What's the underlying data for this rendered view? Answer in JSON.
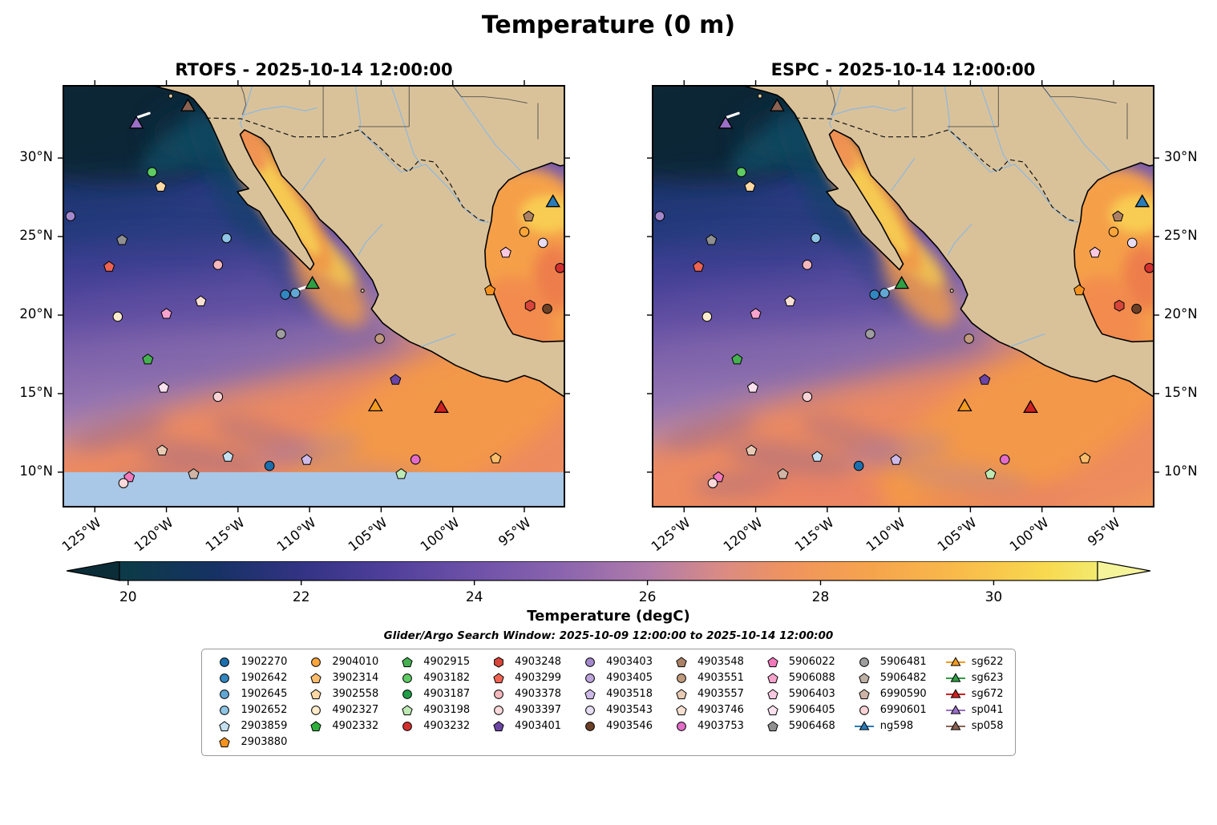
{
  "title": "Temperature (0 m)",
  "panels": [
    {
      "id": "rtofs",
      "title": "RTOFS - 2025-10-14 12:00:00",
      "south_mask": true
    },
    {
      "id": "espc",
      "title": "ESPC - 2025-10-14 12:00:00",
      "south_mask": false
    }
  ],
  "axes": {
    "xlim": [
      -127.2,
      -92.2
    ],
    "ylim": [
      7.8,
      34.6
    ],
    "lon_ticks": [
      {
        "value": -125,
        "label": "125°W"
      },
      {
        "value": -120,
        "label": "120°W"
      },
      {
        "value": -115,
        "label": "115°W"
      },
      {
        "value": -110,
        "label": "110°W"
      },
      {
        "value": -105,
        "label": "105°W"
      },
      {
        "value": -100,
        "label": "100°W"
      },
      {
        "value": -95,
        "label": "95°W"
      }
    ],
    "lat_ticks": [
      {
        "value": 30,
        "label": "30°N"
      },
      {
        "value": 25,
        "label": "25°N"
      },
      {
        "value": 20,
        "label": "20°N"
      },
      {
        "value": 15,
        "label": "15°N"
      },
      {
        "value": 10,
        "label": "10°N"
      }
    ]
  },
  "colorbar": {
    "label": "Temperature (degC)",
    "min": 19.9,
    "max": 31.2,
    "ticks": [
      20,
      22,
      24,
      26,
      28,
      30
    ],
    "under_color": "#0a2d38",
    "over_color": "#f6f49b",
    "stops": [
      [
        20,
        "#0d3a48"
      ],
      [
        21,
        "#163264"
      ],
      [
        22,
        "#333384"
      ],
      [
        23,
        "#4f3f9b"
      ],
      [
        24,
        "#6e51a8"
      ],
      [
        25,
        "#8a64ae"
      ],
      [
        26,
        "#b07baa"
      ],
      [
        26.8,
        "#d88a86"
      ],
      [
        27.6,
        "#ef935f"
      ],
      [
        28.6,
        "#f6a44c"
      ],
      [
        29.6,
        "#f9bb4a"
      ],
      [
        30.6,
        "#f8d94f"
      ],
      [
        31.2,
        "#f3ea6e"
      ]
    ]
  },
  "search_window": "Glider/Argo Search Window: 2025-10-09 12:00:00 to 2025-10-14 12:00:00",
  "map_colors": {
    "land": "#d9c29a",
    "coast": "#000000",
    "river": "#8fb8dc",
    "masked_ocean": "#a9c7e6"
  },
  "legend": {
    "columns": [
      [
        {
          "label": "1902270",
          "marker": "circle",
          "color": "#1b6fae"
        },
        {
          "label": "1902642",
          "marker": "circle",
          "color": "#3387c0"
        },
        {
          "label": "1902645",
          "marker": "circle",
          "color": "#62a7d4"
        },
        {
          "label": "1902652",
          "marker": "circle",
          "color": "#8ec4e4"
        },
        {
          "label": "2903859",
          "marker": "pentagon",
          "color": "#c3dff0"
        },
        {
          "label": "2903880",
          "marker": "pentagon",
          "color": "#f5921e"
        }
      ],
      [
        {
          "label": "2904010",
          "marker": "circle",
          "color": "#fca53a"
        },
        {
          "label": "3902314",
          "marker": "pentagon",
          "color": "#fbbd6b"
        },
        {
          "label": "3902558",
          "marker": "pentagon",
          "color": "#fdd9a4"
        },
        {
          "label": "4902327",
          "marker": "circle",
          "color": "#fdeccb"
        },
        {
          "label": "4902332",
          "marker": "pentagon",
          "color": "#2fae3b"
        }
      ],
      [
        {
          "label": "4902915",
          "marker": "pentagon",
          "color": "#45b050"
        },
        {
          "label": "4903182",
          "marker": "circle",
          "color": "#5ecb63"
        },
        {
          "label": "4903187",
          "marker": "circle",
          "color": "#1e9e46"
        },
        {
          "label": "4903198",
          "marker": "pentagon",
          "color": "#bfe9b4"
        },
        {
          "label": "4903232",
          "marker": "circle",
          "color": "#d32f2f"
        }
      ],
      [
        {
          "label": "4903248",
          "marker": "hexagon",
          "color": "#d8453a"
        },
        {
          "label": "4903299",
          "marker": "pentagon",
          "color": "#ee6352"
        },
        {
          "label": "4903378",
          "marker": "circle",
          "color": "#f5b8bd"
        },
        {
          "label": "4903397",
          "marker": "circle",
          "color": "#fbd9da"
        },
        {
          "label": "4903401",
          "marker": "pentagon",
          "color": "#6a45a4"
        }
      ],
      [
        {
          "label": "4903403",
          "marker": "circle",
          "color": "#a488cc"
        },
        {
          "label": "4903405",
          "marker": "circle",
          "color": "#bda4dc"
        },
        {
          "label": "4903518",
          "marker": "pentagon",
          "color": "#cdbae8"
        },
        {
          "label": "4903543",
          "marker": "circle",
          "color": "#e6dcf4"
        },
        {
          "label": "4903546",
          "marker": "circle",
          "color": "#6b4026"
        }
      ],
      [
        {
          "label": "4903548",
          "marker": "pentagon",
          "color": "#ab8165"
        },
        {
          "label": "4903551",
          "marker": "circle",
          "color": "#c09a7c"
        },
        {
          "label": "4903557",
          "marker": "pentagon",
          "color": "#e8cbb4"
        },
        {
          "label": "4903746",
          "marker": "pentagon",
          "color": "#f7e0d2"
        },
        {
          "label": "4903753",
          "marker": "circle",
          "color": "#e26cc8"
        }
      ],
      [
        {
          "label": "5906022",
          "marker": "pentagon",
          "color": "#f478bc"
        },
        {
          "label": "5906088",
          "marker": "pentagon",
          "color": "#f7a3cd"
        },
        {
          "label": "5906403",
          "marker": "pentagon",
          "color": "#fac8e0"
        },
        {
          "label": "5906405",
          "marker": "pentagon",
          "color": "#fbe0ee"
        },
        {
          "label": "5906468",
          "marker": "pentagon",
          "color": "#8f8f8f"
        }
      ],
      [
        {
          "label": "5906481",
          "marker": "circle",
          "color": "#9e9e9e"
        },
        {
          "label": "5906482",
          "marker": "pentagon",
          "color": "#bdb0a4"
        },
        {
          "label": "6990590",
          "marker": "pentagon",
          "color": "#cfb4a6"
        },
        {
          "label": "6990601",
          "marker": "circle",
          "color": "#f8d3d6"
        },
        {
          "label": "ng598",
          "marker": "glider",
          "color": "#2a7cb8"
        }
      ],
      [
        {
          "label": "sg622",
          "marker": "glider",
          "color": "#f59b20"
        },
        {
          "label": "sg623",
          "marker": "glider",
          "color": "#2f9e44"
        },
        {
          "label": "sg672",
          "marker": "glider",
          "color": "#cf2020"
        },
        {
          "label": "sp041",
          "marker": "glider",
          "color": "#9b6fc8"
        },
        {
          "label": "sp058",
          "marker": "glider",
          "color": "#8b6252"
        }
      ]
    ]
  },
  "markers": [
    {
      "id": "sp041",
      "lon": -122.1,
      "lat": 32.2
    },
    {
      "id": "sp058",
      "lon": -118.5,
      "lat": 33.3
    },
    {
      "id": "4903182",
      "lon": -121.0,
      "lat": 29.1
    },
    {
      "id": "3902558",
      "lon": -120.4,
      "lat": 28.2
    },
    {
      "id": "4903403",
      "lon": -126.7,
      "lat": 26.3
    },
    {
      "id": "5906468",
      "lon": -123.1,
      "lat": 24.8
    },
    {
      "id": "1902652",
      "lon": -115.8,
      "lat": 24.9
    },
    {
      "id": "4903299",
      "lon": -124.0,
      "lat": 23.1
    },
    {
      "id": "4903378",
      "lon": -116.4,
      "lat": 23.2
    },
    {
      "id": "4903746",
      "lon": -117.6,
      "lat": 20.9
    },
    {
      "id": "1902642",
      "lon": -111.7,
      "lat": 21.3
    },
    {
      "id": "1902645",
      "lon": -111.0,
      "lat": 21.4
    },
    {
      "id": "sg623",
      "lon": -109.8,
      "lat": 22.0
    },
    {
      "id": "4902327",
      "lon": -123.4,
      "lat": 19.9
    },
    {
      "id": "5906088",
      "lon": -120.0,
      "lat": 20.1
    },
    {
      "id": "5906481",
      "lon": -112.0,
      "lat": 18.8
    },
    {
      "id": "4903548",
      "lon": -94.7,
      "lat": 26.3
    },
    {
      "id": "2904010",
      "lon": -95.0,
      "lat": 25.3
    },
    {
      "id": "5906403",
      "lon": -96.3,
      "lat": 24.0
    },
    {
      "id": "4903543",
      "lon": -93.7,
      "lat": 24.6
    },
    {
      "id": "ng598",
      "lon": -93.0,
      "lat": 27.2
    },
    {
      "id": "4903232",
      "lon": -92.5,
      "lat": 23.0
    },
    {
      "id": "2903880",
      "lon": -97.4,
      "lat": 21.6
    },
    {
      "id": "4903248",
      "lon": -94.6,
      "lat": 20.6
    },
    {
      "id": "4903546",
      "lon": -93.4,
      "lat": 20.4
    },
    {
      "id": "4902915",
      "lon": -121.3,
      "lat": 17.2
    },
    {
      "id": "5906405",
      "lon": -120.2,
      "lat": 15.4
    },
    {
      "id": "6990601",
      "lon": -116.4,
      "lat": 14.8
    },
    {
      "id": "4903551",
      "lon": -105.1,
      "lat": 18.5
    },
    {
      "id": "4903401",
      "lon": -104.0,
      "lat": 15.9
    },
    {
      "id": "sg622",
      "lon": -105.4,
      "lat": 14.2
    },
    {
      "id": "sg672",
      "lon": -100.8,
      "lat": 14.1
    },
    {
      "id": "4903557",
      "lon": -120.3,
      "lat": 11.4
    },
    {
      "id": "2903859",
      "lon": -115.7,
      "lat": 11.0
    },
    {
      "id": "1902270",
      "lon": -112.8,
      "lat": 10.4
    },
    {
      "id": "4903518",
      "lon": -110.2,
      "lat": 10.8
    },
    {
      "id": "4903753",
      "lon": -102.6,
      "lat": 10.8
    },
    {
      "id": "3902314",
      "lon": -97.0,
      "lat": 10.9
    },
    {
      "id": "5906022",
      "lon": -122.6,
      "lat": 9.7
    },
    {
      "id": "4903397",
      "lon": -123.0,
      "lat": 9.3
    },
    {
      "id": "6990590",
      "lon": -118.1,
      "lat": 9.9
    },
    {
      "id": "4903198",
      "lon": -103.6,
      "lat": 9.9
    }
  ],
  "tracks": [
    {
      "x": [
        -122.0,
        -121.2
      ],
      "y": [
        32.6,
        32.85
      ]
    },
    {
      "x": [
        -110.9,
        -110.2
      ],
      "y": [
        21.6,
        21.8
      ]
    }
  ],
  "chart_data": {
    "type": "heatmap",
    "title": "Temperature (0 m)",
    "subplots": [
      "RTOFS - 2025-10-14 12:00:00",
      "ESPC - 2025-10-14 12:00:00"
    ],
    "x": {
      "label": "longitude",
      "ticks": [
        -125,
        -120,
        -115,
        -110,
        -105,
        -100,
        -95
      ],
      "tick_labels": [
        "125°W",
        "120°W",
        "115°W",
        "110°W",
        "105°W",
        "100°W",
        "95°W"
      ],
      "range": [
        -127.2,
        -92.2
      ]
    },
    "y": {
      "label": "latitude",
      "ticks": [
        30,
        25,
        20,
        15,
        10
      ],
      "tick_labels": [
        "30°N",
        "25°N",
        "20°N",
        "15°N",
        "10°N"
      ],
      "range": [
        7.8,
        34.6
      ]
    },
    "colorbar": {
      "label": "Temperature (degC)",
      "ticks": [
        20,
        22,
        24,
        26,
        28,
        30
      ],
      "displayed_range": [
        19.5,
        31.5
      ]
    },
    "field_readings_degC": [
      {
        "location": "northwest corner offshore California (~125°W, 32°N)",
        "value": 19.5
      },
      {
        "location": "west of central Baja California (~120°W, 26°N)",
        "value": 22.5
      },
      {
        "location": "offshore purple band (~118°W, 20°N)",
        "value": 25
      },
      {
        "location": "northern Gulf of California",
        "value": 29
      },
      {
        "location": "central Gulf of California",
        "value": 30.5
      },
      {
        "location": "tropical Pacific south of 15°N",
        "value": 28.5
      },
      {
        "location": "western Gulf of Mexico",
        "value": 29
      },
      {
        "location": "RTOFS panel south of 10°N",
        "value": "no data (masked light blue)"
      }
    ],
    "platforms": {
      "argo_float_ids": [
        "1902270",
        "1902642",
        "1902645",
        "1902652",
        "2903859",
        "2903880",
        "2904010",
        "3902314",
        "3902558",
        "4902327",
        "4902332",
        "4902915",
        "4903182",
        "4903187",
        "4903198",
        "4903232",
        "4903248",
        "4903299",
        "4903378",
        "4903397",
        "4903401",
        "4903403",
        "4903405",
        "4903518",
        "4903543",
        "4903546",
        "4903548",
        "4903551",
        "4903557",
        "4903746",
        "4903753",
        "5906022",
        "5906088",
        "5906403",
        "5906405",
        "5906468",
        "5906481",
        "5906482",
        "6990590",
        "6990601"
      ],
      "glider_ids": [
        "ng598",
        "sg622",
        "sg623",
        "sg672",
        "sp041",
        "sp058"
      ]
    }
  }
}
